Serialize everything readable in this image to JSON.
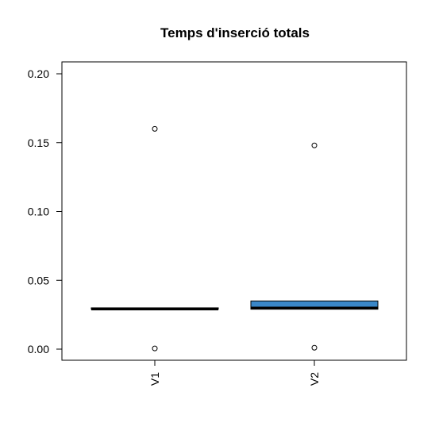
{
  "chart_data": {
    "type": "box",
    "title": "Temps d'inserció totals",
    "xlabel": "",
    "ylabel": "",
    "ylim": [
      -0.008,
      0.208
    ],
    "yticks": [
      "0.00",
      "0.05",
      "0.10",
      "0.15",
      "0.20"
    ],
    "ytick_values": [
      0.0,
      0.05,
      0.1,
      0.15,
      0.2
    ],
    "categories": [
      "V1",
      "V2"
    ],
    "boxes": [
      {
        "name": "V1",
        "q1": 0.029,
        "median": 0.029,
        "q3": 0.03,
        "whisker_low": 0.029,
        "whisker_high": 0.03,
        "outliers": [
          0.16,
          0.0005
        ],
        "fill": "#000000"
      },
      {
        "name": "V2",
        "q1": 0.029,
        "median": 0.03,
        "q3": 0.035,
        "whisker_low": 0.029,
        "whisker_high": 0.035,
        "outliers": [
          0.148,
          0.001
        ],
        "fill": "#3a87c8"
      }
    ],
    "grid": false,
    "legend": "none"
  }
}
